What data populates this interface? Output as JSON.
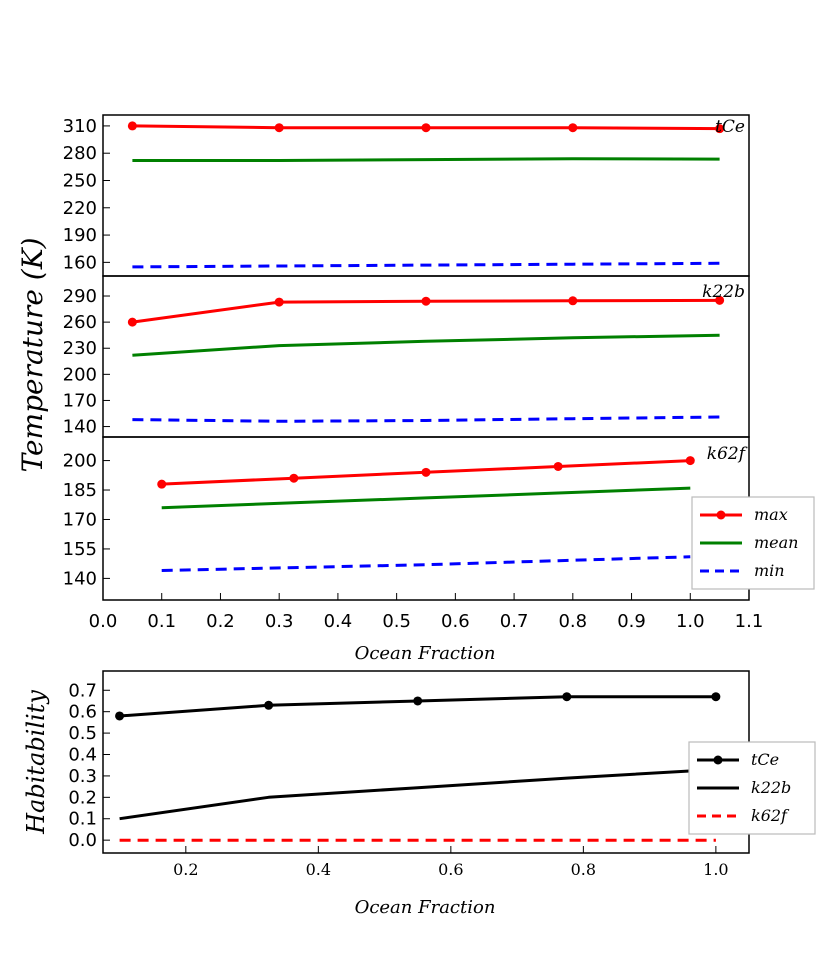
{
  "chart_data": [
    {
      "type": "line",
      "panel": "tCe",
      "annotation": "tCe",
      "ylabel": "Temperature (K)",
      "xlim": [
        0.0,
        1.1
      ],
      "ylim": [
        145,
        322
      ],
      "yticks": [
        160,
        190,
        220,
        250,
        280,
        310
      ],
      "series": [
        {
          "name": "max",
          "color": "#ff0000",
          "style": "solid-marker",
          "x": [
            0.05,
            0.3,
            0.55,
            0.8,
            1.05
          ],
          "y": [
            310,
            308,
            308,
            308,
            307
          ]
        },
        {
          "name": "mean",
          "color": "#008000",
          "style": "solid",
          "x": [
            0.05,
            0.3,
            0.55,
            0.8,
            1.05
          ],
          "y": [
            272,
            272,
            273,
            274,
            273.5
          ]
        },
        {
          "name": "min",
          "color": "#0000ff",
          "style": "dashed",
          "x": [
            0.05,
            0.3,
            0.55,
            0.8,
            1.05
          ],
          "y": [
            155,
            156,
            157,
            158,
            159
          ]
        }
      ]
    },
    {
      "type": "line",
      "panel": "k22b",
      "annotation": "k22b",
      "xlim": [
        0.0,
        1.1
      ],
      "ylim": [
        128,
        313
      ],
      "yticks": [
        140,
        170,
        200,
        230,
        260,
        290
      ],
      "series": [
        {
          "name": "max",
          "color": "#ff0000",
          "style": "solid-marker",
          "x": [
            0.05,
            0.3,
            0.55,
            0.8,
            1.05
          ],
          "y": [
            260,
            283,
            284,
            284.5,
            285
          ]
        },
        {
          "name": "mean",
          "color": "#008000",
          "style": "solid",
          "x": [
            0.05,
            0.3,
            0.55,
            0.8,
            1.05
          ],
          "y": [
            222,
            233,
            238,
            242,
            245
          ]
        },
        {
          "name": "min",
          "color": "#0000ff",
          "style": "dashed",
          "x": [
            0.05,
            0.3,
            0.55,
            0.8,
            1.05
          ],
          "y": [
            148,
            146,
            147,
            149,
            151
          ]
        }
      ]
    },
    {
      "type": "line",
      "panel": "k62f",
      "annotation": "k62f",
      "xlabel": "Ocean Fraction",
      "xlim": [
        0.0,
        1.1
      ],
      "xticks": [
        0.0,
        0.1,
        0.2,
        0.3,
        0.4,
        0.5,
        0.6,
        0.7,
        0.8,
        0.9,
        1.0,
        1.1
      ],
      "ylim": [
        129,
        212
      ],
      "yticks": [
        140,
        155,
        170,
        185,
        200
      ],
      "legend": "lower-right",
      "series": [
        {
          "name": "max",
          "color": "#ff0000",
          "style": "solid-marker",
          "x": [
            0.1,
            0.325,
            0.55,
            0.775,
            1.0
          ],
          "y": [
            188,
            191,
            194,
            197,
            200
          ]
        },
        {
          "name": "mean",
          "color": "#008000",
          "style": "solid",
          "x": [
            0.1,
            0.325,
            0.55,
            0.775,
            1.0
          ],
          "y": [
            176,
            178.5,
            181,
            183.5,
            186
          ]
        },
        {
          "name": "min",
          "color": "#0000ff",
          "style": "dashed",
          "x": [
            0.1,
            0.325,
            0.55,
            0.775,
            1.0
          ],
          "y": [
            144,
            145.5,
            147,
            149,
            151
          ]
        }
      ]
    },
    {
      "type": "line",
      "panel": "habitability",
      "xlabel": "Ocean Fraction",
      "ylabel": "Habitability",
      "xlim": [
        0.075,
        1.05
      ],
      "xticks": [
        0.2,
        0.4,
        0.6,
        0.8,
        1.0
      ],
      "ylim": [
        -0.06,
        0.79
      ],
      "yticks": [
        0.0,
        0.1,
        0.2,
        0.3,
        0.4,
        0.5,
        0.6,
        0.7
      ],
      "legend": "right",
      "series": [
        {
          "name": "tCe",
          "color": "#000000",
          "style": "solid-marker",
          "x": [
            0.1,
            0.325,
            0.55,
            0.775,
            1.0
          ],
          "y": [
            0.58,
            0.63,
            0.65,
            0.67,
            0.67
          ]
        },
        {
          "name": "k22b",
          "color": "#000000",
          "style": "solid",
          "x": [
            0.1,
            0.325,
            0.55,
            0.775,
            1.0
          ],
          "y": [
            0.1,
            0.2,
            0.245,
            0.29,
            0.33
          ]
        },
        {
          "name": "k62f",
          "color": "#ff0000",
          "style": "dashed",
          "x": [
            0.1,
            0.325,
            0.55,
            0.775,
            1.0
          ],
          "y": [
            0.0,
            0.0,
            0.0,
            0.0,
            0.0
          ]
        }
      ]
    }
  ]
}
